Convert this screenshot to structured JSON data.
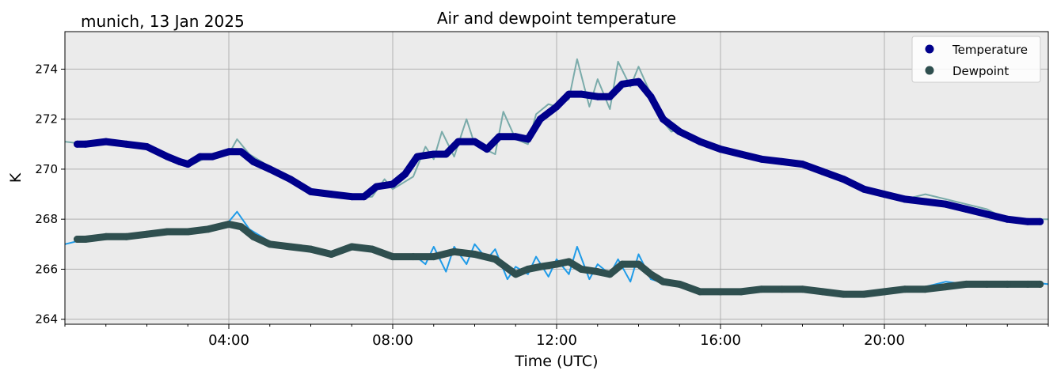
{
  "header": {
    "location_date": "munich, 13 Jan 2025"
  },
  "chart_data": {
    "type": "line",
    "title": "Air and dewpoint temperature",
    "xlabel": "Time (UTC)",
    "ylabel": "K",
    "x_unit": "hour (UTC)",
    "xlim": [
      0,
      24
    ],
    "ylim": [
      263.8,
      275.5
    ],
    "xticks": [
      4,
      8,
      12,
      16,
      20
    ],
    "xtick_labels": [
      "04:00",
      "08:00",
      "12:00",
      "16:00",
      "20:00"
    ],
    "yticks": [
      264,
      266,
      268,
      270,
      272,
      274
    ],
    "ytick_labels": [
      "264",
      "266",
      "268",
      "270",
      "272",
      "274"
    ],
    "grid": true,
    "legend_position": "top-right",
    "colors": {
      "plot_bg": "#ebebeb",
      "grid": "#b0b0b0",
      "temperature": "#00008b",
      "temperature_raw": "#7aabaa",
      "dewpoint": "#2f4f4f",
      "dewpoint_raw": "#1f9be8"
    },
    "series": [
      {
        "name": "Temperature",
        "role": "smoothed",
        "marker": "circle",
        "x": [
          0.3,
          0.5,
          1.0,
          1.5,
          2.0,
          2.5,
          2.8,
          3.0,
          3.3,
          3.6,
          4.0,
          4.3,
          4.6,
          5.0,
          5.5,
          6.0,
          6.5,
          7.0,
          7.3,
          7.6,
          8.0,
          8.3,
          8.6,
          9.0,
          9.3,
          9.6,
          10.0,
          10.3,
          10.6,
          11.0,
          11.3,
          11.6,
          12.0,
          12.3,
          12.6,
          13.0,
          13.3,
          13.6,
          14.0,
          14.3,
          14.6,
          15.0,
          15.5,
          16.0,
          16.5,
          17.0,
          17.5,
          18.0,
          18.5,
          19.0,
          19.5,
          20.0,
          20.5,
          21.0,
          21.5,
          22.0,
          22.5,
          23.0,
          23.5,
          23.8
        ],
        "y": [
          271.0,
          271.0,
          271.1,
          271.0,
          270.9,
          270.5,
          270.3,
          270.2,
          270.5,
          270.5,
          270.7,
          270.7,
          270.3,
          270.0,
          269.6,
          269.1,
          269.0,
          268.9,
          268.9,
          269.3,
          269.4,
          269.8,
          270.5,
          270.6,
          270.6,
          271.1,
          271.1,
          270.8,
          271.3,
          271.3,
          271.2,
          272.0,
          272.5,
          273.0,
          273.0,
          272.9,
          272.9,
          273.4,
          273.5,
          272.9,
          272.0,
          271.5,
          271.1,
          270.8,
          270.6,
          270.4,
          270.3,
          270.2,
          269.9,
          269.6,
          269.2,
          269.0,
          268.8,
          268.7,
          268.6,
          268.4,
          268.2,
          268.0,
          267.9,
          267.9
        ]
      },
      {
        "name": "Dewpoint",
        "role": "smoothed",
        "marker": "circle",
        "x": [
          0.3,
          0.5,
          1.0,
          1.5,
          2.0,
          2.5,
          3.0,
          3.5,
          4.0,
          4.3,
          4.6,
          5.0,
          5.5,
          6.0,
          6.5,
          7.0,
          7.5,
          8.0,
          8.5,
          9.0,
          9.5,
          10.0,
          10.5,
          11.0,
          11.3,
          11.6,
          12.0,
          12.3,
          12.6,
          13.0,
          13.3,
          13.6,
          14.0,
          14.3,
          14.6,
          15.0,
          15.5,
          16.0,
          16.5,
          17.0,
          17.5,
          18.0,
          18.5,
          19.0,
          19.5,
          20.0,
          20.5,
          21.0,
          21.5,
          22.0,
          22.5,
          23.0,
          23.5,
          23.8
        ],
        "y": [
          267.2,
          267.2,
          267.3,
          267.3,
          267.4,
          267.5,
          267.5,
          267.6,
          267.8,
          267.7,
          267.3,
          267.0,
          266.9,
          266.8,
          266.6,
          266.9,
          266.8,
          266.5,
          266.5,
          266.5,
          266.7,
          266.6,
          266.4,
          265.8,
          266.0,
          266.1,
          266.2,
          266.3,
          266.0,
          265.9,
          265.8,
          266.2,
          266.2,
          265.8,
          265.5,
          265.4,
          265.1,
          265.1,
          265.1,
          265.2,
          265.2,
          265.2,
          265.1,
          265.0,
          265.0,
          265.1,
          265.2,
          265.2,
          265.3,
          265.4,
          265.4,
          265.4,
          265.4,
          265.4
        ]
      },
      {
        "role": "raw",
        "of": "Temperature",
        "x": [
          0.0,
          0.5,
          1.0,
          1.5,
          2.0,
          2.5,
          3.0,
          3.5,
          4.0,
          4.2,
          4.5,
          5.0,
          5.5,
          6.0,
          6.5,
          7.0,
          7.5,
          7.8,
          8.0,
          8.5,
          8.8,
          9.0,
          9.2,
          9.5,
          9.8,
          10.0,
          10.5,
          10.7,
          11.0,
          11.3,
          11.5,
          11.8,
          12.0,
          12.3,
          12.5,
          12.8,
          13.0,
          13.3,
          13.5,
          13.8,
          14.0,
          14.3,
          14.5,
          14.8,
          15.0,
          15.5,
          16.0,
          16.5,
          17.0,
          17.5,
          18.0,
          18.5,
          19.0,
          19.5,
          20.0,
          20.5,
          21.0,
          21.5,
          22.0,
          22.5,
          23.0,
          23.5,
          24.0
        ],
        "y": [
          271.1,
          271.0,
          271.2,
          271.0,
          270.9,
          270.6,
          270.1,
          270.5,
          270.6,
          271.2,
          270.6,
          270.1,
          269.6,
          269.1,
          268.9,
          268.8,
          268.9,
          269.6,
          269.2,
          269.7,
          270.9,
          270.4,
          271.5,
          270.5,
          272.0,
          271.0,
          270.6,
          272.3,
          271.2,
          271.0,
          272.2,
          272.6,
          272.5,
          272.8,
          274.4,
          272.5,
          273.6,
          272.4,
          274.3,
          273.3,
          274.1,
          273.0,
          272.1,
          271.5,
          271.6,
          271.2,
          270.9,
          270.6,
          270.4,
          270.3,
          270.2,
          269.9,
          269.6,
          269.2,
          269.0,
          268.8,
          269.0,
          268.8,
          268.6,
          268.4,
          268.0,
          268.0,
          268.0
        ]
      },
      {
        "role": "raw",
        "of": "Dewpoint",
        "x": [
          0.0,
          0.5,
          1.0,
          1.5,
          2.0,
          2.5,
          3.0,
          3.5,
          4.0,
          4.2,
          4.5,
          5.0,
          5.5,
          6.0,
          6.5,
          7.0,
          7.5,
          8.0,
          8.5,
          8.8,
          9.0,
          9.3,
          9.5,
          9.8,
          10.0,
          10.3,
          10.5,
          10.8,
          11.0,
          11.3,
          11.5,
          11.8,
          12.0,
          12.3,
          12.5,
          12.8,
          13.0,
          13.3,
          13.5,
          13.8,
          14.0,
          14.3,
          14.5,
          15.0,
          15.5,
          16.0,
          16.5,
          17.0,
          17.5,
          18.0,
          18.5,
          19.0,
          19.5,
          20.0,
          20.5,
          21.0,
          21.5,
          22.0,
          22.5,
          23.0,
          23.5,
          24.0
        ],
        "y": [
          267.0,
          267.2,
          267.3,
          267.4,
          267.4,
          267.5,
          267.5,
          267.6,
          267.9,
          268.3,
          267.6,
          267.1,
          266.9,
          266.8,
          266.7,
          266.9,
          266.8,
          266.4,
          266.6,
          266.2,
          266.9,
          265.9,
          266.9,
          266.2,
          267.0,
          266.4,
          266.8,
          265.6,
          266.1,
          265.8,
          266.5,
          265.7,
          266.4,
          265.8,
          266.9,
          265.6,
          266.2,
          265.8,
          266.4,
          265.5,
          266.6,
          265.6,
          265.5,
          265.3,
          265.1,
          265.2,
          265.1,
          265.2,
          265.2,
          265.3,
          265.1,
          265.0,
          265.0,
          265.1,
          265.2,
          265.3,
          265.5,
          265.4,
          265.4,
          265.4,
          265.5,
          265.4
        ]
      }
    ]
  }
}
